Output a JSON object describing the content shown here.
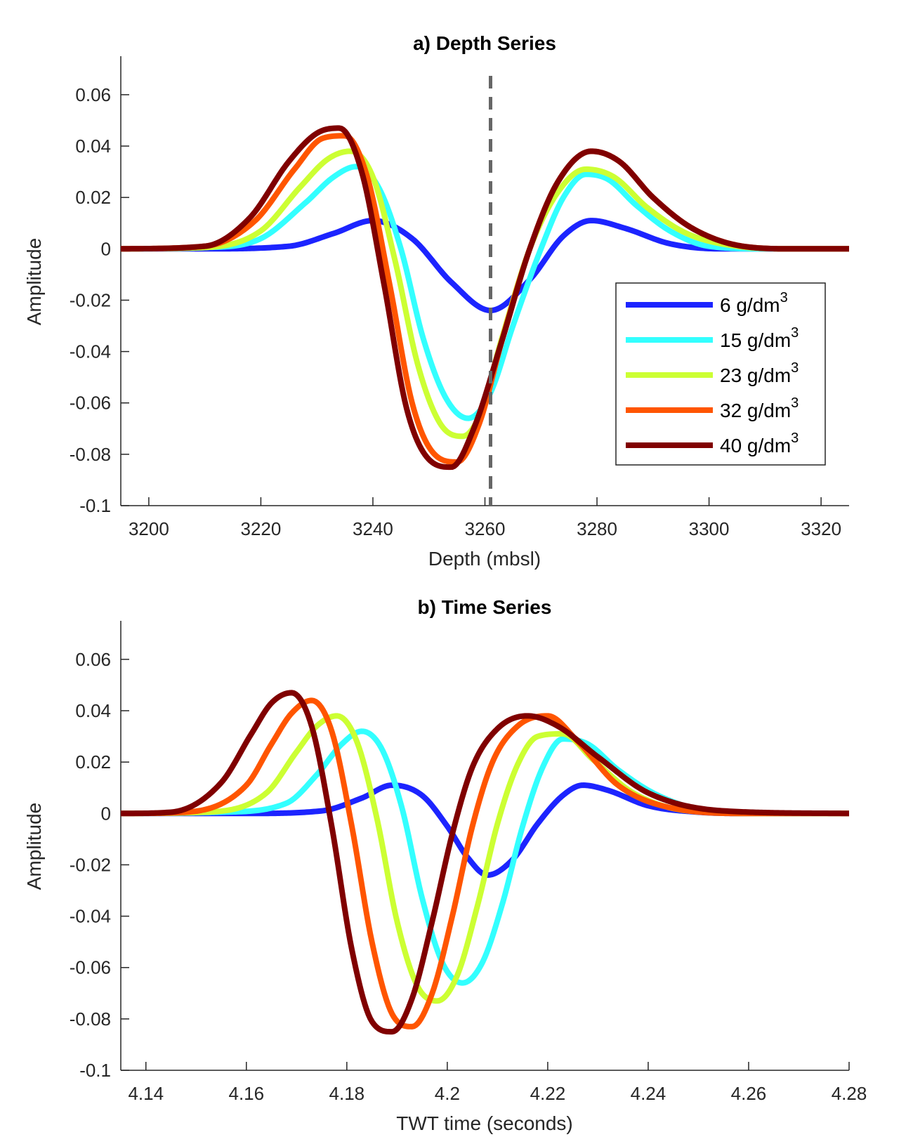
{
  "chart_data": [
    {
      "type": "line",
      "title": "a) Depth Series",
      "xlabel": "Depth (mbsl)",
      "ylabel": "Amplitude",
      "xlim": [
        3195,
        3325
      ],
      "ylim": [
        -0.1,
        0.075
      ],
      "xticks": [
        3200,
        3220,
        3240,
        3260,
        3280,
        3300,
        3320
      ],
      "xtick_labels": [
        "3200",
        "3220",
        "3240",
        "3260",
        "3280",
        "3300",
        "3320"
      ],
      "yticks": [
        -0.1,
        -0.08,
        -0.06,
        -0.04,
        -0.02,
        0,
        0.02,
        0.04,
        0.06
      ],
      "ytick_labels": [
        "-0.1",
        "-0.08",
        "-0.06",
        "-0.04",
        "-0.02",
        "0",
        "0.02",
        "0.04",
        "0.06"
      ],
      "grid": false,
      "reference_line": {
        "x": 3261,
        "style": "dashed",
        "color": "#666666"
      },
      "legend": {
        "placement": "right",
        "entries": [
          {
            "text": "6 g/dm",
            "sup": "3",
            "color": "#1c24ff"
          },
          {
            "text": "15 g/dm",
            "sup": "3",
            "color": "#33ffff"
          },
          {
            "text": "23 g/dm",
            "sup": "3",
            "color": "#ccff33"
          },
          {
            "text": "32 g/dm",
            "sup": "3",
            "color": "#ff5500"
          },
          {
            "text": "40 g/dm",
            "sup": "3",
            "color": "#800000"
          }
        ]
      },
      "series": [
        {
          "name": "6 g/dm3",
          "color": "#1c24ff",
          "x": [
            3195,
            3210,
            3225,
            3233,
            3240,
            3247,
            3254,
            3261,
            3268,
            3274,
            3279,
            3285,
            3293,
            3302,
            3315,
            3325
          ],
          "y": [
            0,
            0,
            0.001,
            0.006,
            0.011,
            0.004,
            -0.013,
            -0.024,
            -0.012,
            0.005,
            0.011,
            0.008,
            0.002,
            0,
            0,
            0
          ]
        },
        {
          "name": "15 g/dm3",
          "color": "#33ffff",
          "x": [
            3195,
            3210,
            3220,
            3228,
            3233,
            3237,
            3241,
            3245,
            3249,
            3253,
            3257,
            3261,
            3265,
            3270,
            3274,
            3278,
            3282,
            3287,
            3293,
            3300,
            3310,
            3325
          ],
          "y": [
            0,
            0.0005,
            0.004,
            0.018,
            0.028,
            0.032,
            0.024,
            0.0,
            -0.035,
            -0.058,
            -0.066,
            -0.056,
            -0.03,
            0.0,
            0.02,
            0.029,
            0.027,
            0.017,
            0.007,
            0.001,
            0,
            0
          ]
        },
        {
          "name": "23 g/dm3",
          "color": "#ccff33",
          "x": [
            3195,
            3210,
            3220,
            3227,
            3232,
            3236,
            3240,
            3244,
            3248,
            3252,
            3256,
            3259,
            3263,
            3268,
            3273,
            3278,
            3283,
            3289,
            3296,
            3305,
            3315,
            3325
          ],
          "y": [
            0,
            0.0005,
            0.007,
            0.024,
            0.035,
            0.038,
            0.028,
            -0.005,
            -0.045,
            -0.068,
            -0.073,
            -0.065,
            -0.035,
            0.0,
            0.022,
            0.031,
            0.028,
            0.016,
            0.006,
            0.001,
            0,
            0
          ]
        },
        {
          "name": "32 g/dm3",
          "color": "#ff5500",
          "x": [
            3195,
            3210,
            3219,
            3226,
            3231,
            3235,
            3239,
            3243,
            3247,
            3251,
            3255,
            3259,
            3263,
            3268,
            3273,
            3279,
            3284,
            3290,
            3297,
            3306,
            3315,
            3325
          ],
          "y": [
            0,
            0.001,
            0.011,
            0.031,
            0.043,
            0.044,
            0.028,
            -0.014,
            -0.06,
            -0.08,
            -0.083,
            -0.068,
            -0.036,
            0.0,
            0.026,
            0.038,
            0.034,
            0.02,
            0.008,
            0.001,
            0,
            0
          ]
        },
        {
          "name": "40 g/dm3",
          "color": "#800000",
          "x": [
            3195,
            3210,
            3218,
            3225,
            3230,
            3234,
            3238,
            3242,
            3246,
            3250,
            3254,
            3258,
            3263,
            3268,
            3273,
            3279,
            3284,
            3290,
            3297,
            3306,
            3315,
            3325
          ],
          "y": [
            0,
            0.001,
            0.012,
            0.034,
            0.045,
            0.047,
            0.03,
            -0.014,
            -0.062,
            -0.082,
            -0.085,
            -0.07,
            -0.036,
            0.0,
            0.026,
            0.038,
            0.034,
            0.02,
            0.008,
            0.001,
            0,
            0
          ]
        }
      ]
    },
    {
      "type": "line",
      "title": "b) Time Series",
      "xlabel": "TWT time (seconds)",
      "ylabel": "Amplitude",
      "xlim": [
        4.135,
        4.28
      ],
      "ylim": [
        -0.1,
        0.075
      ],
      "xticks": [
        4.14,
        4.16,
        4.18,
        4.2,
        4.22,
        4.24,
        4.26,
        4.28
      ],
      "xtick_labels": [
        "4.14",
        "4.16",
        "4.18",
        "4.2",
        "4.22",
        "4.24",
        "4.26",
        "4.28"
      ],
      "yticks": [
        -0.1,
        -0.08,
        -0.06,
        -0.04,
        -0.02,
        0,
        0.02,
        0.04,
        0.06
      ],
      "ytick_labels": [
        "-0.1",
        "-0.08",
        "-0.06",
        "-0.04",
        "-0.02",
        "0",
        "0.02",
        "0.04",
        "0.06"
      ],
      "grid": false,
      "series": [
        {
          "name": "6 g/dm3",
          "color": "#1c24ff",
          "x": [
            4.135,
            4.16,
            4.175,
            4.183,
            4.189,
            4.195,
            4.2,
            4.204,
            4.208,
            4.213,
            4.218,
            4.223,
            4.227,
            4.232,
            4.24,
            4.25,
            4.26,
            4.28
          ],
          "y": [
            0,
            0,
            0.001,
            0.006,
            0.011,
            0.007,
            -0.005,
            -0.017,
            -0.024,
            -0.018,
            -0.004,
            0.007,
            0.011,
            0.009,
            0.003,
            0.0005,
            0,
            0
          ]
        },
        {
          "name": "15 g/dm3",
          "color": "#33ffff",
          "x": [
            4.135,
            4.155,
            4.168,
            4.174,
            4.179,
            4.183,
            4.187,
            4.191,
            4.195,
            4.199,
            4.203,
            4.207,
            4.211,
            4.215,
            4.219,
            4.223,
            4.228,
            4.234,
            4.242,
            4.252,
            4.265,
            4.28
          ],
          "y": [
            0,
            0.0005,
            0.004,
            0.015,
            0.027,
            0.032,
            0.025,
            0.002,
            -0.033,
            -0.058,
            -0.066,
            -0.058,
            -0.035,
            -0.005,
            0.018,
            0.029,
            0.027,
            0.017,
            0.007,
            0.001,
            0,
            0
          ]
        },
        {
          "name": "23 g/dm3",
          "color": "#ccff33",
          "x": [
            4.135,
            4.152,
            4.164,
            4.17,
            4.174,
            4.178,
            4.182,
            4.186,
            4.19,
            4.194,
            4.198,
            4.202,
            4.206,
            4.21,
            4.214,
            4.218,
            4.223,
            4.229,
            4.237,
            4.248,
            4.262,
            4.28
          ],
          "y": [
            0,
            0.0005,
            0.008,
            0.024,
            0.034,
            0.038,
            0.028,
            -0.002,
            -0.042,
            -0.067,
            -0.073,
            -0.063,
            -0.036,
            -0.004,
            0.019,
            0.03,
            0.031,
            0.021,
            0.008,
            0.001,
            0,
            0
          ]
        },
        {
          "name": "32 g/dm3",
          "color": "#ff5500",
          "x": [
            4.135,
            4.148,
            4.16,
            4.165,
            4.169,
            4.173,
            4.177,
            4.181,
            4.185,
            4.189,
            4.193,
            4.197,
            4.201,
            4.205,
            4.209,
            4.214,
            4.22,
            4.226,
            4.234,
            4.245,
            4.26,
            4.28
          ],
          "y": [
            0,
            0.0005,
            0.011,
            0.027,
            0.039,
            0.044,
            0.032,
            -0.005,
            -0.05,
            -0.078,
            -0.083,
            -0.07,
            -0.04,
            -0.005,
            0.02,
            0.034,
            0.038,
            0.028,
            0.011,
            0.002,
            0,
            0
          ]
        },
        {
          "name": "40 g/dm3",
          "color": "#800000",
          "x": [
            4.135,
            4.145,
            4.155,
            4.161,
            4.165,
            4.169,
            4.173,
            4.177,
            4.181,
            4.185,
            4.189,
            4.193,
            4.197,
            4.201,
            4.205,
            4.21,
            4.216,
            4.222,
            4.23,
            4.24,
            4.255,
            4.28
          ],
          "y": [
            0,
            0.0005,
            0.012,
            0.031,
            0.043,
            0.047,
            0.034,
            -0.005,
            -0.053,
            -0.081,
            -0.085,
            -0.072,
            -0.042,
            -0.008,
            0.018,
            0.033,
            0.038,
            0.034,
            0.022,
            0.008,
            0.001,
            0
          ]
        }
      ]
    }
  ]
}
